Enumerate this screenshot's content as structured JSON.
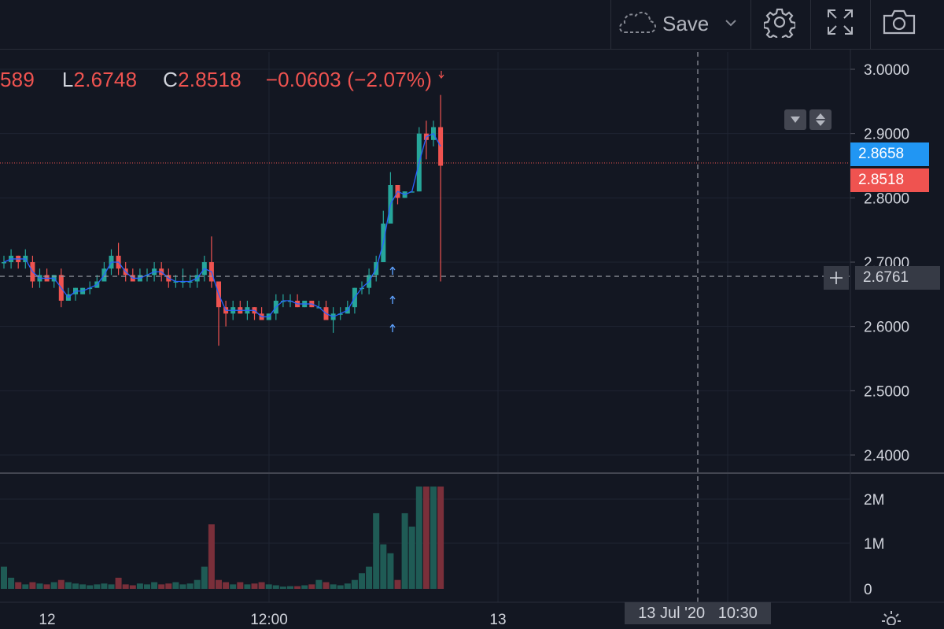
{
  "toolbar": {
    "save_label": "Save"
  },
  "legend": {
    "open_partial": "589",
    "low_key": "L",
    "low_value": "2.6748",
    "close_key": "C",
    "close_value": "2.8518",
    "change": "−0.0603 (−2.07%)"
  },
  "price_scale": {
    "ticks": [
      "3.0000",
      "2.9000",
      "2.8000",
      "2.7000",
      "2.6000",
      "2.5000",
      "2.4000"
    ],
    "tick_values": [
      3.0,
      2.9,
      2.8,
      2.7,
      2.6,
      2.5,
      2.4
    ],
    "blue_tag": "2.8658",
    "red_tag": "2.8518",
    "crosshair_tag": "2.6761"
  },
  "volume_scale": {
    "ticks": [
      "2M",
      "1M",
      "0"
    ]
  },
  "time_axis": {
    "labels": [
      "12",
      "12:00",
      "13"
    ],
    "crosshair_label": "13 Jul '20   10:30"
  },
  "colors": {
    "up": "#26a69a",
    "down": "#ef5350",
    "background": "#131722",
    "grid": "#1f2433",
    "crosshair": "#9598a1"
  },
  "chart_data": {
    "type": "candlestick",
    "y_range": [
      2.35,
      3.02
    ],
    "candles": [
      [
        2.7,
        2.71,
        2.69,
        2.7
      ],
      [
        2.7,
        2.72,
        2.69,
        2.71
      ],
      [
        2.71,
        2.71,
        2.69,
        2.7
      ],
      [
        2.7,
        2.72,
        2.69,
        2.71
      ],
      [
        2.7,
        2.71,
        2.66,
        2.67
      ],
      [
        2.67,
        2.69,
        2.66,
        2.68
      ],
      [
        2.68,
        2.69,
        2.67,
        2.67
      ],
      [
        2.67,
        2.68,
        2.66,
        2.68
      ],
      [
        2.68,
        2.69,
        2.63,
        2.64
      ],
      [
        2.64,
        2.66,
        2.64,
        2.65
      ],
      [
        2.65,
        2.66,
        2.64,
        2.66
      ],
      [
        2.65,
        2.66,
        2.65,
        2.66
      ],
      [
        2.66,
        2.67,
        2.65,
        2.66
      ],
      [
        2.66,
        2.68,
        2.66,
        2.67
      ],
      [
        2.67,
        2.7,
        2.67,
        2.69
      ],
      [
        2.69,
        2.72,
        2.68,
        2.71
      ],
      [
        2.71,
        2.73,
        2.68,
        2.69
      ],
      [
        2.69,
        2.7,
        2.67,
        2.68
      ],
      [
        2.68,
        2.69,
        2.67,
        2.67
      ],
      [
        2.67,
        2.69,
        2.67,
        2.68
      ],
      [
        2.68,
        2.69,
        2.67,
        2.68
      ],
      [
        2.68,
        2.7,
        2.67,
        2.69
      ],
      [
        2.69,
        2.7,
        2.67,
        2.68
      ],
      [
        2.68,
        2.69,
        2.66,
        2.67
      ],
      [
        2.67,
        2.68,
        2.66,
        2.67
      ],
      [
        2.67,
        2.69,
        2.66,
        2.67
      ],
      [
        2.67,
        2.68,
        2.66,
        2.67
      ],
      [
        2.67,
        2.69,
        2.66,
        2.68
      ],
      [
        2.68,
        2.71,
        2.67,
        2.7
      ],
      [
        2.7,
        2.74,
        2.66,
        2.67
      ],
      [
        2.67,
        2.67,
        2.57,
        2.63
      ],
      [
        2.63,
        2.64,
        2.6,
        2.62
      ],
      [
        2.62,
        2.64,
        2.61,
        2.63
      ],
      [
        2.63,
        2.64,
        2.62,
        2.62
      ],
      [
        2.62,
        2.64,
        2.61,
        2.63
      ],
      [
        2.63,
        2.63,
        2.61,
        2.62
      ],
      [
        2.62,
        2.63,
        2.61,
        2.61
      ],
      [
        2.61,
        2.62,
        2.61,
        2.62
      ],
      [
        2.62,
        2.65,
        2.61,
        2.64
      ],
      [
        2.64,
        2.65,
        2.63,
        2.64
      ],
      [
        2.64,
        2.65,
        2.63,
        2.64
      ],
      [
        2.64,
        2.65,
        2.63,
        2.63
      ],
      [
        2.63,
        2.64,
        2.63,
        2.64
      ],
      [
        2.64,
        2.64,
        2.63,
        2.63
      ],
      [
        2.63,
        2.64,
        2.63,
        2.63
      ],
      [
        2.63,
        2.64,
        2.61,
        2.61
      ],
      [
        2.61,
        2.63,
        2.59,
        2.62
      ],
      [
        2.62,
        2.63,
        2.61,
        2.62
      ],
      [
        2.62,
        2.64,
        2.62,
        2.63
      ],
      [
        2.63,
        2.66,
        2.62,
        2.66
      ],
      [
        2.66,
        2.67,
        2.65,
        2.66
      ],
      [
        2.66,
        2.69,
        2.65,
        2.68
      ],
      [
        2.68,
        2.71,
        2.67,
        2.7
      ],
      [
        2.7,
        2.78,
        2.7,
        2.76
      ],
      [
        2.76,
        2.84,
        2.76,
        2.82
      ],
      [
        2.82,
        2.82,
        2.79,
        2.8
      ],
      [
        2.8,
        2.81,
        2.8,
        2.81
      ],
      [
        2.81,
        2.81,
        2.81,
        2.81
      ],
      [
        2.81,
        2.91,
        2.81,
        2.9
      ],
      [
        2.9,
        2.92,
        2.86,
        2.89
      ],
      [
        2.89,
        2.92,
        2.88,
        2.91
      ],
      [
        2.91,
        2.96,
        2.67,
        2.85
      ]
    ],
    "volume": [
      0.5,
      0.25,
      0.15,
      0.1,
      0.15,
      0.12,
      0.1,
      0.15,
      0.2,
      0.15,
      0.12,
      0.1,
      0.08,
      0.1,
      0.12,
      0.1,
      0.25,
      0.1,
      0.08,
      0.12,
      0.1,
      0.15,
      0.1,
      0.12,
      0.15,
      0.1,
      0.12,
      0.2,
      0.5,
      1.45,
      0.2,
      0.15,
      0.1,
      0.15,
      0.1,
      0.12,
      0.15,
      0.1,
      0.08,
      0.05,
      0.06,
      0.06,
      0.08,
      0.1,
      0.2,
      0.15,
      0.1,
      0.08,
      0.12,
      0.2,
      0.35,
      0.5,
      1.7,
      1.0,
      0.8,
      0.2,
      1.7,
      1.4,
      2.3,
      2.3,
      2.3,
      2.3
    ]
  }
}
